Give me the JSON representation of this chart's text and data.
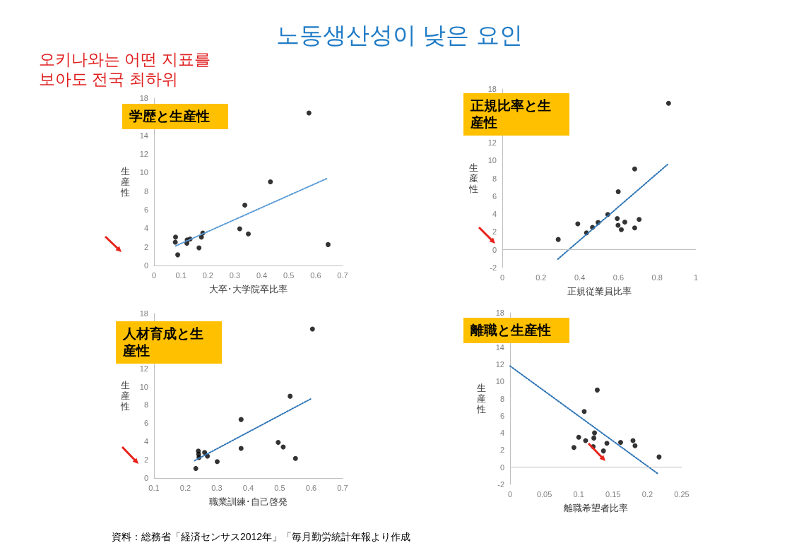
{
  "chart_data": [
    {
      "type": "other",
      "title": "노동생산성이 낮은 요인",
      "annotations": [
        "오키나와는 어떤 지표를 보아도 전국 최하위",
        "資料：総務省「経済センサス2012年」「毎月勤労統計年報より作成"
      ]
    },
    {
      "type": "scatter",
      "title": "学歴と生産性",
      "xlabel": "大卒･大学院卒比率",
      "ylabel": "生産性",
      "xlim": [
        0,
        0.7
      ],
      "xticks": [
        0,
        0.1,
        0.2,
        0.3,
        0.4,
        0.5,
        0.6,
        0.7
      ],
      "ylim": [
        0,
        18
      ],
      "yticks": [
        0,
        2,
        4,
        6,
        8,
        10,
        12,
        14,
        18
      ],
      "grid": false,
      "series": [
        {
          "type": "scatter",
          "color": "#000000",
          "marker": "circle",
          "x": [
            0.08,
            0.079,
            0.088,
            0.122,
            0.123,
            0.134,
            0.167,
            0.176,
            0.181,
            0.318,
            0.337,
            0.35,
            0.432,
            0.575,
            0.646
          ],
          "values": [
            3.05,
            2.5,
            1.15,
            2.4,
            2.75,
            2.85,
            1.9,
            3.05,
            3.5,
            3.95,
            6.5,
            3.4,
            9.0,
            16.4,
            2.25
          ]
        },
        {
          "type": "line",
          "color": "#5b9bd5",
          "marker": "none",
          "line_style": "dotted",
          "x": [
            0.08,
            0.645
          ],
          "values": [
            2.1,
            9.4
          ]
        }
      ]
    },
    {
      "type": "scatter",
      "title": "正規比率と生産性",
      "xlabel": "正規従業員比率",
      "ylabel": "生産性",
      "xlim": [
        0,
        1
      ],
      "xticks": [
        0,
        0.2,
        0.4,
        0.6,
        0.8,
        1
      ],
      "ylim": [
        -2,
        18
      ],
      "yticks": [
        -2,
        0,
        2,
        4,
        6,
        8,
        10,
        12,
        18
      ],
      "grid": false,
      "ref_lines": [
        {
          "axis": "y",
          "value": 0
        }
      ],
      "series": [
        {
          "type": "scatter",
          "color": "#000000",
          "marker": "circle",
          "x": [
            0.289,
            0.39,
            0.435,
            0.466,
            0.495,
            0.545,
            0.594,
            0.599,
            0.598,
            0.615,
            0.633,
            0.684,
            0.684,
            0.707,
            0.859
          ],
          "values": [
            1.15,
            2.9,
            1.9,
            2.5,
            3.05,
            3.95,
            3.5,
            6.5,
            2.75,
            2.25,
            3.1,
            2.45,
            9.05,
            3.4,
            16.4
          ]
        },
        {
          "type": "line",
          "color": "#2e75b6",
          "marker": "none",
          "line_style": "dotted",
          "x": [
            0.287,
            0.854
          ],
          "values": [
            -1.05,
            9.55
          ]
        }
      ]
    },
    {
      "type": "scatter",
      "title": "人材育成と生産性",
      "xlabel": "職業訓練･自己啓発",
      "ylabel": "生産性",
      "xlim": [
        0.1,
        0.7
      ],
      "xticks": [
        0.1,
        0.2,
        0.3,
        0.4,
        0.5,
        0.6,
        0.7
      ],
      "ylim": [
        0,
        18
      ],
      "yticks": [
        0,
        2,
        4,
        6,
        8,
        10,
        12,
        18
      ],
      "grid": false,
      "series": [
        {
          "type": "scatter",
          "color": "#000000",
          "marker": "circle",
          "x": [
            0.233,
            0.241,
            0.242,
            0.243,
            0.261,
            0.27,
            0.301,
            0.377,
            0.377,
            0.495,
            0.511,
            0.533,
            0.55,
            0.604
          ],
          "values": [
            1.05,
            2.95,
            2.6,
            2.25,
            2.8,
            2.4,
            1.8,
            6.4,
            3.25,
            3.9,
            3.4,
            8.95,
            2.15,
            16.3
          ]
        },
        {
          "type": "line",
          "color": "#2e75b6",
          "marker": "none",
          "line_style": "dotted",
          "x": [
            0.229,
            0.601
          ],
          "values": [
            1.9,
            8.7
          ]
        }
      ]
    },
    {
      "type": "scatter",
      "title": "離職と生産性",
      "xlabel": "離職希望者比率",
      "ylabel": "生産性",
      "xlim": [
        0,
        0.25
      ],
      "xticks": [
        0,
        0.05,
        0.1,
        0.15,
        0.2,
        0.25
      ],
      "ylim": [
        -2,
        18
      ],
      "yticks": [
        -2,
        0,
        2,
        4,
        6,
        8,
        10,
        12,
        14,
        18
      ],
      "grid": false,
      "ref_lines": [
        {
          "axis": "y",
          "value": 0
        }
      ],
      "series": [
        {
          "type": "scatter",
          "color": "#000000",
          "marker": "circle",
          "x": [
            0.093,
            0.1,
            0.108,
            0.11,
            0.123,
            0.122,
            0.121,
            0.127,
            0.136,
            0.141,
            0.161,
            0.179,
            0.182,
            0.217
          ],
          "values": [
            2.3,
            3.5,
            6.5,
            3.1,
            4.0,
            3.4,
            2.4,
            9.0,
            1.9,
            2.8,
            2.9,
            3.1,
            2.5,
            1.2
          ]
        },
        {
          "type": "line",
          "color": "#2e75b6",
          "marker": "none",
          "line_style": "dotted",
          "x": [
            0,
            0.216
          ],
          "values": [
            11.8,
            -0.8
          ]
        }
      ]
    }
  ]
}
